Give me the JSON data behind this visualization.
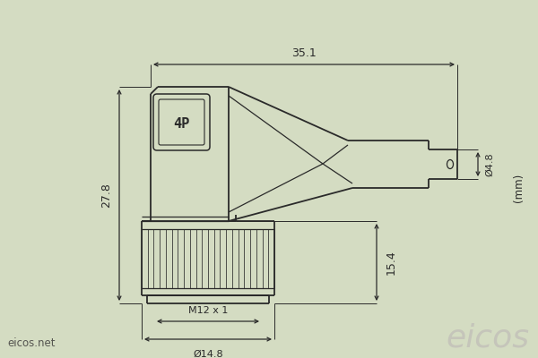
{
  "bg_color": "#d4dcc2",
  "line_color": "#2a2a2a",
  "dim_color": "#2a2a2a",
  "eicos_color": "#c0c0b8",
  "dim_35_1": "35.1",
  "dim_27_8": "27.8",
  "dim_15_4": "15.4",
  "dim_4_8": "Ø4.8",
  "dim_m12": "M12 x 1",
  "dim_14_8": "Ø14.8",
  "unit": "(mm)",
  "website": "eicos.net",
  "brand": "eicos",
  "lw": 1.3,
  "arrow_scale": 7
}
